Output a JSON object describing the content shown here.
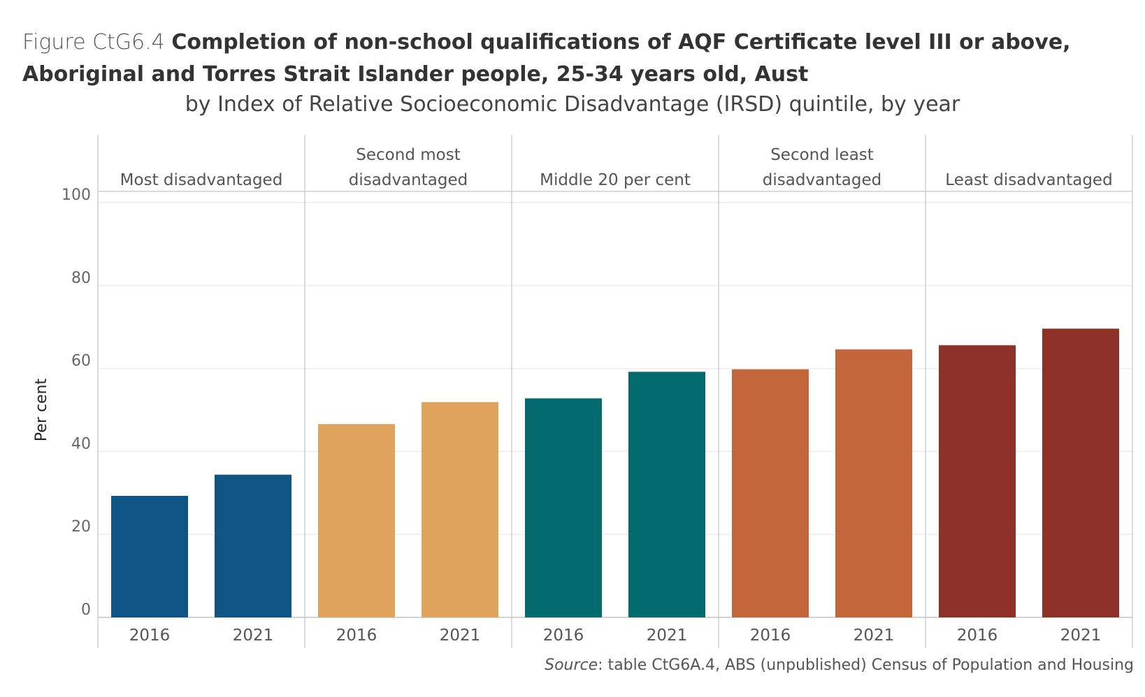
{
  "title": {
    "figure_label": "Figure CtG6.4",
    "main": "Completion of non-school qualifications of AQF Certificate level III or above, Aboriginal and Torres Strait Islander people, 25-34 years old, Aust"
  },
  "subtitle": "by Index of Relative Socioeconomic Disadvantage (IRSD) quintile, by year",
  "source": {
    "label": "Source",
    "text": ": table CtG6A.4, ABS (unpublished) Census of Population and Housing"
  },
  "chart_data": {
    "type": "bar",
    "ylabel": "Per cent",
    "ylim": [
      0,
      100
    ],
    "yticks": [
      0,
      20,
      40,
      60,
      80,
      100
    ],
    "grid": true,
    "panels": [
      {
        "name": "Most disadvantaged",
        "name_lines": [
          "Most disadvantaged"
        ],
        "color": "#0e5484",
        "categories": [
          "2016",
          "2021"
        ],
        "values": [
          29.3,
          34.4
        ]
      },
      {
        "name": "Second most disadvantaged",
        "name_lines": [
          "Second most",
          "disadvantaged"
        ],
        "color": "#dfa35d",
        "categories": [
          "2016",
          "2021"
        ],
        "values": [
          46.6,
          51.9
        ]
      },
      {
        "name": "Middle 20 per cent",
        "name_lines": [
          "Middle 20 per cent"
        ],
        "color": "#036b6e",
        "categories": [
          "2016",
          "2021"
        ],
        "values": [
          52.8,
          59.2
        ]
      },
      {
        "name": "Second least disadvantaged",
        "name_lines": [
          "Second least",
          "disadvantaged"
        ],
        "color": "#c4663c",
        "categories": [
          "2016",
          "2021"
        ],
        "values": [
          59.8,
          64.6
        ]
      },
      {
        "name": "Least disadvantaged",
        "name_lines": [
          "Least disadvantaged"
        ],
        "color": "#8c3028",
        "categories": [
          "2016",
          "2021"
        ],
        "values": [
          65.6,
          69.6
        ]
      }
    ]
  }
}
